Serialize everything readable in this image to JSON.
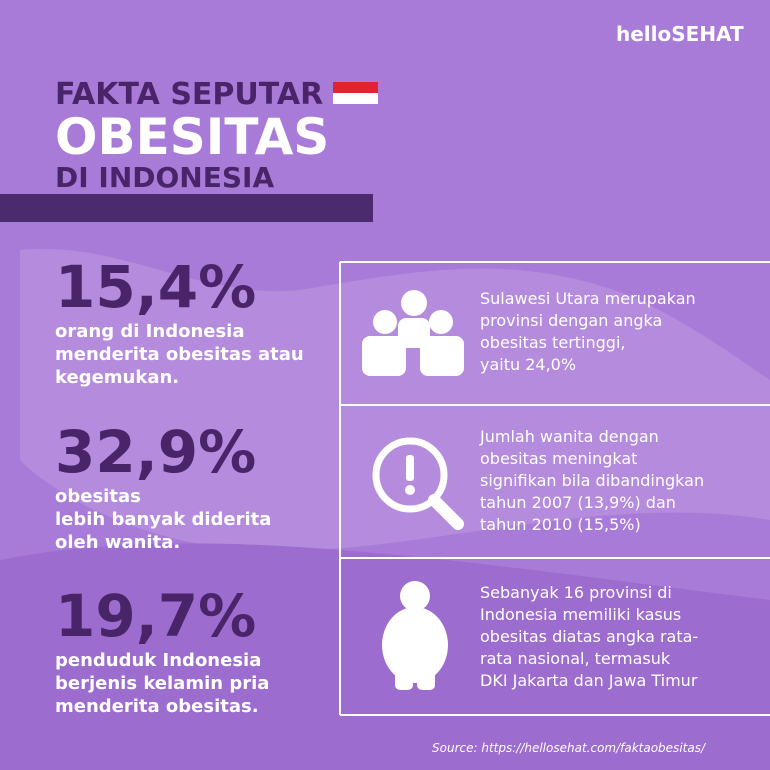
{
  "logo": "helloSEHAT",
  "header": {
    "line1": "FAKTA SEPUTAR",
    "line2": "OBESITAS",
    "line3": "DI INDONESIA"
  },
  "stats": [
    {
      "value": "15,4%",
      "lines": [
        "orang di Indonesia",
        "menderita obesitas atau",
        "kegemukan."
      ]
    },
    {
      "value": "32,9%",
      "lines": [
        "obesitas",
        "lebih banyak diderita",
        "oleh wanita."
      ]
    },
    {
      "value": "19,7%",
      "lines": [
        "penduduk Indonesia",
        "berjenis kelamin pria",
        "menderita obesitas."
      ]
    }
  ],
  "facts": [
    {
      "lines": [
        "Sulawesi Utara merupakan",
        "provinsi dengan angka",
        "obesitas tertinggi,",
        "yaitu 24,0%"
      ]
    },
    {
      "lines": [
        "Jumlah wanita dengan",
        "obesitas meningkat",
        "signifikan bila dibandingkan",
        "tahun 2007 (13,9%) dan",
        "tahun 2010 (15,5%)"
      ]
    },
    {
      "lines": [
        "Sebanyak 16 provinsi di",
        "Indonesia memiliki kasus",
        "obesitas diatas angka rata-",
        "rata nasional, termasuk",
        "DKI Jakarta dan Jawa Timur"
      ]
    }
  ],
  "source": "Source: https://hellosehat.com/faktaobesitas/"
}
